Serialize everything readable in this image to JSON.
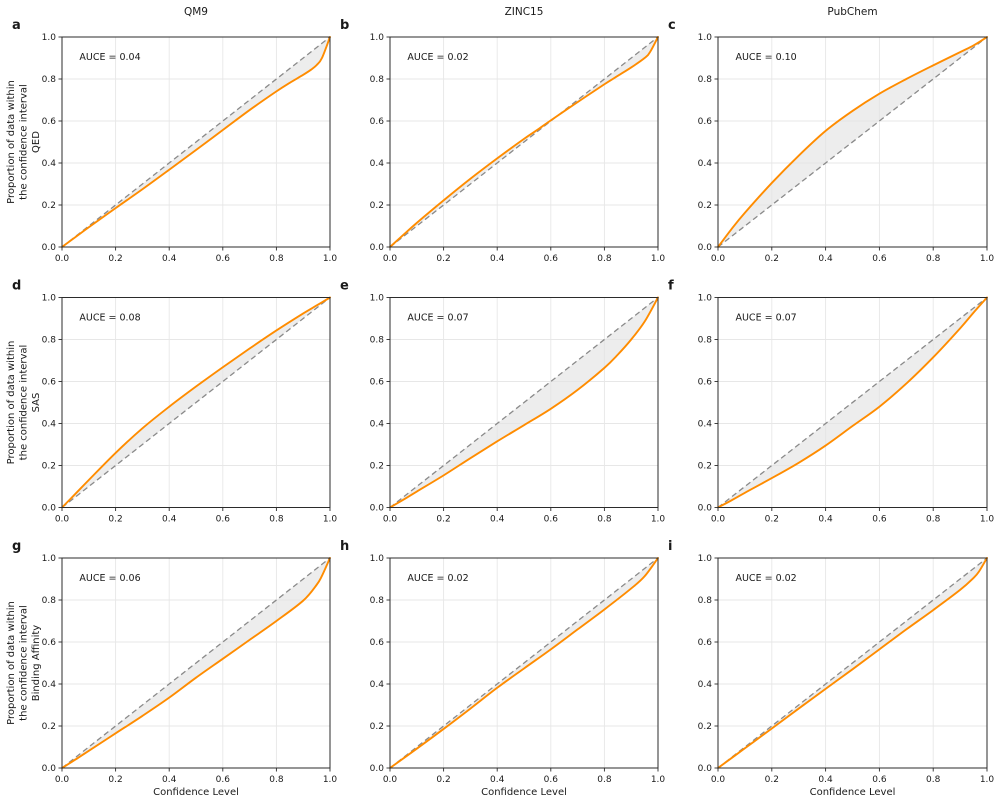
{
  "figure": {
    "column_titles": [
      "QM9",
      "ZINC15",
      "PubChem"
    ],
    "row_properties": [
      "QED",
      "SAS",
      "Binding Affinity"
    ],
    "panel_letters": [
      "a",
      "b",
      "c",
      "d",
      "e",
      "f",
      "g",
      "h",
      "i"
    ],
    "xlabel": "Confidence Level",
    "ylabel_line1": "Proportion of data within",
    "ylabel_line2": "the confidence interval",
    "tick_labels": [
      "0.0",
      "0.2",
      "0.4",
      "0.6",
      "0.8",
      "1.0"
    ],
    "tick_values": [
      0,
      0.2,
      0.4,
      0.6,
      0.8,
      1.0
    ],
    "colors": {
      "curve": "#ff8c00",
      "identity_line": "#8a8a8a",
      "fill_between": "#e4e4e4",
      "grid": "#e7e7e7",
      "spine": "#2b2b2b",
      "text": "#1a1a1a",
      "background": "#ffffff"
    }
  },
  "chart_data": [
    {
      "type": "line",
      "panel": "a",
      "dataset": "QM9",
      "property": "QED",
      "auce_label": "AUCE = 0.04",
      "auce": 0.04,
      "xlim": [
        0,
        1
      ],
      "ylim": [
        0,
        1
      ],
      "identity": [
        [
          0,
          0
        ],
        [
          1,
          1
        ]
      ],
      "x": [
        0,
        0.05,
        0.1,
        0.2,
        0.3,
        0.4,
        0.5,
        0.6,
        0.7,
        0.8,
        0.85,
        0.9,
        0.93,
        0.95,
        0.97,
        1
      ],
      "y": [
        0,
        0.047,
        0.094,
        0.185,
        0.275,
        0.368,
        0.462,
        0.557,
        0.652,
        0.741,
        0.782,
        0.82,
        0.845,
        0.866,
        0.9,
        1
      ]
    },
    {
      "type": "line",
      "panel": "b",
      "dataset": "ZINC15",
      "property": "QED",
      "auce_label": "AUCE = 0.02",
      "auce": 0.02,
      "xlim": [
        0,
        1
      ],
      "ylim": [
        0,
        1
      ],
      "identity": [
        [
          0,
          0
        ],
        [
          1,
          1
        ]
      ],
      "x": [
        0,
        0.05,
        0.1,
        0.2,
        0.3,
        0.4,
        0.5,
        0.55,
        0.6,
        0.7,
        0.8,
        0.85,
        0.9,
        0.95,
        0.97,
        1
      ],
      "y": [
        0,
        0.058,
        0.115,
        0.222,
        0.325,
        0.422,
        0.515,
        0.558,
        0.603,
        0.69,
        0.775,
        0.815,
        0.855,
        0.9,
        0.928,
        1
      ]
    },
    {
      "type": "line",
      "panel": "c",
      "dataset": "PubChem",
      "property": "QED",
      "auce_label": "AUCE = 0.10",
      "auce": 0.1,
      "xlim": [
        0,
        1
      ],
      "ylim": [
        0,
        1
      ],
      "identity": [
        [
          0,
          0
        ],
        [
          1,
          1
        ]
      ],
      "x": [
        0,
        0.05,
        0.1,
        0.2,
        0.3,
        0.4,
        0.5,
        0.6,
        0.7,
        0.8,
        0.9,
        0.95,
        1
      ],
      "y": [
        0,
        0.085,
        0.163,
        0.305,
        0.435,
        0.553,
        0.648,
        0.73,
        0.8,
        0.865,
        0.928,
        0.96,
        1
      ]
    },
    {
      "type": "line",
      "panel": "d",
      "dataset": "QM9",
      "property": "SAS",
      "auce_label": "AUCE = 0.08",
      "auce": 0.08,
      "xlim": [
        0,
        1
      ],
      "ylim": [
        0,
        1
      ],
      "identity": [
        [
          0,
          0
        ],
        [
          1,
          1
        ]
      ],
      "x": [
        0,
        0.05,
        0.1,
        0.2,
        0.3,
        0.4,
        0.5,
        0.6,
        0.7,
        0.8,
        0.9,
        0.95,
        1
      ],
      "y": [
        0,
        0.065,
        0.131,
        0.26,
        0.377,
        0.48,
        0.576,
        0.668,
        0.757,
        0.843,
        0.924,
        0.962,
        1
      ]
    },
    {
      "type": "line",
      "panel": "e",
      "dataset": "ZINC15",
      "property": "SAS",
      "auce_label": "AUCE = 0.07",
      "auce": 0.07,
      "xlim": [
        0,
        1
      ],
      "ylim": [
        0,
        1
      ],
      "identity": [
        [
          0,
          0
        ],
        [
          1,
          1
        ]
      ],
      "x": [
        0,
        0.05,
        0.1,
        0.2,
        0.3,
        0.4,
        0.5,
        0.6,
        0.7,
        0.8,
        0.85,
        0.9,
        0.95,
        1
      ],
      "y": [
        0,
        0.037,
        0.076,
        0.153,
        0.235,
        0.315,
        0.392,
        0.47,
        0.56,
        0.665,
        0.728,
        0.8,
        0.885,
        1
      ]
    },
    {
      "type": "line",
      "panel": "f",
      "dataset": "PubChem",
      "property": "SAS",
      "auce_label": "AUCE = 0.07",
      "auce": 0.07,
      "xlim": [
        0,
        1
      ],
      "ylim": [
        0,
        1
      ],
      "identity": [
        [
          0,
          0
        ],
        [
          1,
          1
        ]
      ],
      "x": [
        0,
        0.05,
        0.1,
        0.2,
        0.3,
        0.4,
        0.5,
        0.6,
        0.7,
        0.8,
        0.9,
        0.95,
        1
      ],
      "y": [
        0,
        0.034,
        0.07,
        0.14,
        0.213,
        0.295,
        0.388,
        0.48,
        0.59,
        0.715,
        0.853,
        0.928,
        1
      ]
    },
    {
      "type": "line",
      "panel": "g",
      "dataset": "QM9",
      "property": "Binding Affinity",
      "auce_label": "AUCE = 0.06",
      "auce": 0.06,
      "xlim": [
        0,
        1
      ],
      "ylim": [
        0,
        1
      ],
      "identity": [
        [
          0,
          0
        ],
        [
          1,
          1
        ]
      ],
      "x": [
        0,
        0.05,
        0.1,
        0.2,
        0.3,
        0.4,
        0.5,
        0.6,
        0.7,
        0.8,
        0.9,
        0.95,
        0.97,
        1
      ],
      "y": [
        0,
        0.04,
        0.082,
        0.165,
        0.248,
        0.335,
        0.43,
        0.52,
        0.61,
        0.7,
        0.797,
        0.872,
        0.915,
        1
      ]
    },
    {
      "type": "line",
      "panel": "h",
      "dataset": "ZINC15",
      "property": "Binding Affinity",
      "auce_label": "AUCE = 0.02",
      "auce": 0.02,
      "xlim": [
        0,
        1
      ],
      "ylim": [
        0,
        1
      ],
      "identity": [
        [
          0,
          0
        ],
        [
          1,
          1
        ]
      ],
      "x": [
        0,
        0.1,
        0.2,
        0.3,
        0.4,
        0.5,
        0.6,
        0.7,
        0.8,
        0.9,
        0.95,
        1
      ],
      "y": [
        0,
        0.092,
        0.186,
        0.283,
        0.382,
        0.474,
        0.565,
        0.66,
        0.755,
        0.855,
        0.913,
        1
      ]
    },
    {
      "type": "line",
      "panel": "i",
      "dataset": "PubChem",
      "property": "Binding Affinity",
      "auce_label": "AUCE = 0.02",
      "auce": 0.02,
      "xlim": [
        0,
        1
      ],
      "ylim": [
        0,
        1
      ],
      "identity": [
        [
          0,
          0
        ],
        [
          1,
          1
        ]
      ],
      "x": [
        0,
        0.1,
        0.2,
        0.3,
        0.4,
        0.5,
        0.6,
        0.7,
        0.8,
        0.9,
        0.95,
        0.97,
        1
      ],
      "y": [
        0,
        0.094,
        0.188,
        0.283,
        0.377,
        0.47,
        0.565,
        0.66,
        0.752,
        0.848,
        0.905,
        0.935,
        1
      ]
    }
  ]
}
